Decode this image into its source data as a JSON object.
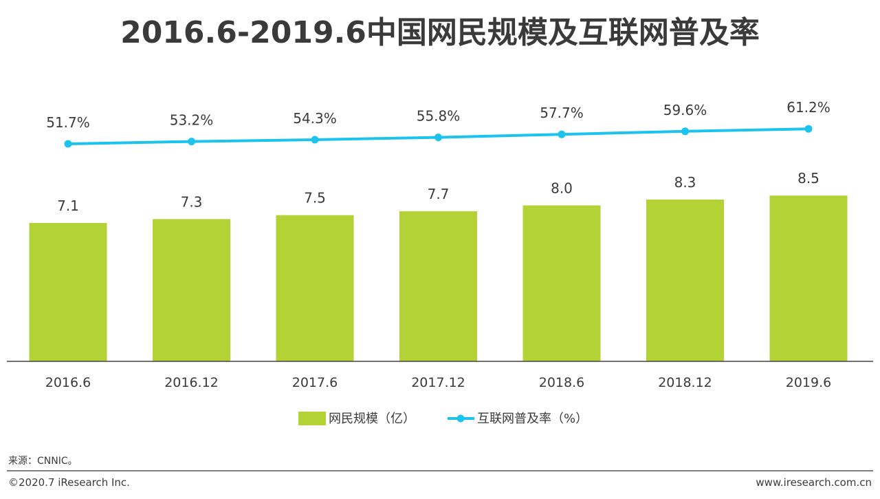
{
  "chart_data": {
    "type": "bar+line",
    "title": "2016.6-2019.6中国网民规模及互联网普及率",
    "categories": [
      "2016.6",
      "2016.12",
      "2017.6",
      "2017.12",
      "2018.6",
      "2018.12",
      "2019.6"
    ],
    "series": [
      {
        "name": "网民规模（亿）",
        "type": "bar",
        "values": [
          7.1,
          7.3,
          7.5,
          7.7,
          8.0,
          8.3,
          8.5
        ],
        "labels": [
          "7.1",
          "7.3",
          "7.5",
          "7.7",
          "8.0",
          "8.3",
          "8.5"
        ],
        "color": "#b2d235"
      },
      {
        "name": "互联网普及率（%）",
        "type": "line",
        "values": [
          51.7,
          53.2,
          54.3,
          55.8,
          57.7,
          59.6,
          61.2
        ],
        "labels": [
          "51.7%",
          "53.2%",
          "54.3%",
          "55.8%",
          "57.7%",
          "59.6%",
          "61.2%"
        ],
        "color": "#1cc3ee"
      }
    ],
    "bar_axis_range": [
      0,
      8.5
    ],
    "grid": false,
    "legend_position": "bottom"
  },
  "source": "来源：CNNIC。",
  "footer": {
    "copyright": "©2020.7 iResearch Inc.",
    "url": "www.iresearch.com.cn"
  }
}
